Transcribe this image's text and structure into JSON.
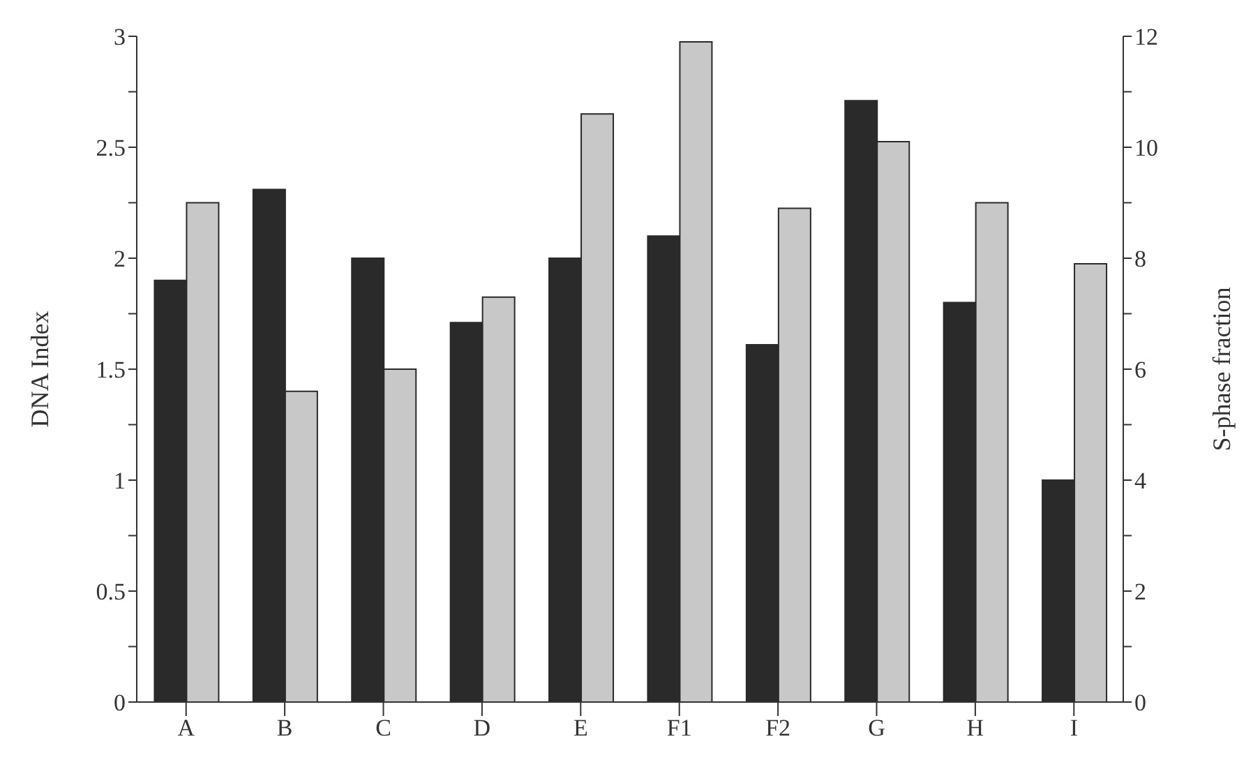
{
  "chart_data": {
    "type": "bar",
    "ylabel": "DNA Index",
    "y2label": "S-phase fraction",
    "categories": [
      "A",
      "B",
      "C",
      "D",
      "E",
      "F1",
      "F2",
      "G",
      "H",
      "I"
    ],
    "series": [
      {
        "color": "#2a2a2a",
        "values": [
          1.9,
          2.31,
          2.0,
          1.71,
          2.0,
          2.1,
          1.61,
          2.71,
          1.8,
          1.0
        ]
      },
      {
        "color": "#c8c8c8",
        "axis": "y2",
        "values": [
          9.0,
          5.6,
          6.0,
          7.3,
          10.6,
          11.9,
          8.9,
          10.1,
          9.0,
          7.9
        ]
      }
    ],
    "ylim": [
      0,
      3
    ],
    "yticks": [
      0,
      {
        "value": 0.25,
        "label": null
      },
      0.5,
      {
        "value": 0.75,
        "label": null
      },
      1,
      {
        "value": 1.25,
        "label": null
      },
      1.5,
      {
        "value": 1.75,
        "label": null
      },
      2,
      {
        "value": 2.25,
        "label": null
      },
      2.5,
      {
        "value": 2.75,
        "label": null
      },
      3
    ],
    "y2lim": [
      0,
      12
    ],
    "y2ticks": [
      0,
      {
        "value": 1,
        "label": null
      },
      2,
      {
        "value": 3,
        "label": null
      },
      4,
      {
        "value": 5,
        "label": null
      },
      6,
      {
        "value": 7,
        "label": null
      },
      8,
      {
        "value": 9,
        "label": null
      },
      10,
      {
        "value": 11,
        "label": null
      },
      12
    ],
    "grid": false,
    "legend": false
  }
}
